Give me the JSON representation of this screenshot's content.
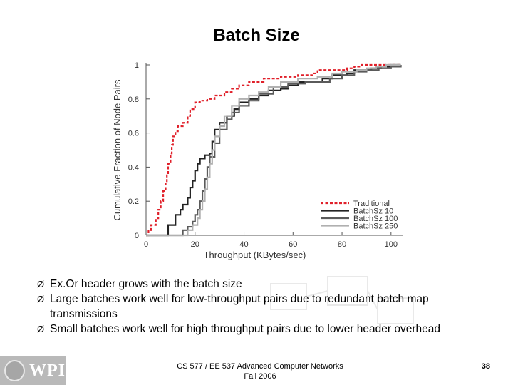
{
  "slide": {
    "title": "Batch Size",
    "bullets": [
      "Ex.Or header grows with the batch size",
      "Large batches work well for low-throughput pairs due to redundant batch map transmissions",
      "Small batches work well for high throughput pairs due to lower header overhead"
    ],
    "bullet_marker": "Ø",
    "footer_line1": "CS 577 / EE 537 Advanced Computer Networks",
    "footer_line2": "Fall 2006",
    "page_number": "38",
    "logo_text": "WPI"
  },
  "chart_data": {
    "type": "line",
    "title": "",
    "xlabel": "Throughput (KBytes/sec)",
    "ylabel": "Cumulative Fraction of Node Pairs",
    "xlim": [
      0,
      105
    ],
    "ylim": [
      0,
      1
    ],
    "x_ticks": [
      0,
      20,
      40,
      60,
      80,
      100
    ],
    "y_ticks": [
      0,
      0.2,
      0.4,
      0.6,
      0.8,
      1
    ],
    "x_tick_labels": [
      "0",
      "20",
      "40",
      "60",
      "80",
      "100"
    ],
    "y_tick_labels": [
      "0",
      "0.2",
      "0.4",
      "0.6",
      "0.8",
      "1"
    ],
    "grid": false,
    "legend_position": "bottom-right",
    "step": true,
    "series": [
      {
        "name": "Traditional",
        "color": "#e0202a",
        "dash": "dashed",
        "points": [
          [
            0,
            0
          ],
          [
            1,
            0.03
          ],
          [
            2,
            0.06
          ],
          [
            4,
            0.1
          ],
          [
            5,
            0.15
          ],
          [
            6,
            0.2
          ],
          [
            7,
            0.26
          ],
          [
            8,
            0.31
          ],
          [
            8.5,
            0.36
          ],
          [
            9,
            0.42
          ],
          [
            10,
            0.48
          ],
          [
            10.5,
            0.53
          ],
          [
            11,
            0.58
          ],
          [
            12,
            0.61
          ],
          [
            13,
            0.64
          ],
          [
            15,
            0.66
          ],
          [
            17,
            0.7
          ],
          [
            18,
            0.74
          ],
          [
            20,
            0.78
          ],
          [
            22,
            0.79
          ],
          [
            25,
            0.8
          ],
          [
            28,
            0.82
          ],
          [
            32,
            0.84
          ],
          [
            35,
            0.86
          ],
          [
            38,
            0.88
          ],
          [
            42,
            0.9
          ],
          [
            48,
            0.92
          ],
          [
            55,
            0.93
          ],
          [
            62,
            0.94
          ],
          [
            68,
            0.95
          ],
          [
            70,
            0.97
          ],
          [
            78,
            0.97
          ],
          [
            82,
            0.98
          ],
          [
            85,
            0.99
          ],
          [
            88,
            1.0
          ],
          [
            104,
            1.0
          ]
        ]
      },
      {
        "name": "BatchSz 10",
        "color": "#222222",
        "dash": "solid",
        "points": [
          [
            0,
            0
          ],
          [
            9,
            0
          ],
          [
            9,
            0.06
          ],
          [
            11,
            0.06
          ],
          [
            12,
            0.12
          ],
          [
            14,
            0.15
          ],
          [
            15,
            0.18
          ],
          [
            17,
            0.22
          ],
          [
            18,
            0.28
          ],
          [
            19,
            0.32
          ],
          [
            20,
            0.38
          ],
          [
            21,
            0.42
          ],
          [
            22,
            0.45
          ],
          [
            24,
            0.47
          ],
          [
            26,
            0.48
          ],
          [
            27,
            0.55
          ],
          [
            28,
            0.62
          ],
          [
            30,
            0.66
          ],
          [
            33,
            0.7
          ],
          [
            36,
            0.74
          ],
          [
            38,
            0.78
          ],
          [
            42,
            0.8
          ],
          [
            46,
            0.82
          ],
          [
            50,
            0.85
          ],
          [
            55,
            0.86
          ],
          [
            58,
            0.88
          ],
          [
            62,
            0.9
          ],
          [
            72,
            0.92
          ],
          [
            76,
            0.94
          ],
          [
            82,
            0.95
          ],
          [
            85,
            0.97
          ],
          [
            92,
            0.98
          ],
          [
            96,
            0.99
          ],
          [
            100,
            1.0
          ],
          [
            104,
            1.0
          ]
        ]
      },
      {
        "name": "BatchSz 100",
        "color": "#5a5a5a",
        "dash": "solid",
        "points": [
          [
            0,
            0
          ],
          [
            14,
            0
          ],
          [
            15,
            0.03
          ],
          [
            17,
            0.05
          ],
          [
            19,
            0.08
          ],
          [
            20,
            0.12
          ],
          [
            21,
            0.15
          ],
          [
            22,
            0.2
          ],
          [
            23,
            0.26
          ],
          [
            24,
            0.33
          ],
          [
            25,
            0.4
          ],
          [
            26,
            0.46
          ],
          [
            28,
            0.54
          ],
          [
            30,
            0.62
          ],
          [
            33,
            0.68
          ],
          [
            35,
            0.72
          ],
          [
            38,
            0.76
          ],
          [
            42,
            0.79
          ],
          [
            46,
            0.83
          ],
          [
            52,
            0.87
          ],
          [
            58,
            0.89
          ],
          [
            65,
            0.9
          ],
          [
            72,
            0.9
          ],
          [
            75,
            0.92
          ],
          [
            80,
            0.94
          ],
          [
            85,
            0.96
          ],
          [
            90,
            0.97
          ],
          [
            95,
            0.98
          ],
          [
            100,
            0.99
          ],
          [
            104,
            1.0
          ]
        ]
      },
      {
        "name": "BatchSz 250",
        "color": "#b0b0b0",
        "dash": "solid",
        "points": [
          [
            0,
            0
          ],
          [
            16,
            0
          ],
          [
            17,
            0.03
          ],
          [
            19,
            0.06
          ],
          [
            21,
            0.1
          ],
          [
            22,
            0.15
          ],
          [
            23,
            0.2
          ],
          [
            24,
            0.27
          ],
          [
            25,
            0.34
          ],
          [
            26,
            0.42
          ],
          [
            27,
            0.5
          ],
          [
            28,
            0.58
          ],
          [
            30,
            0.64
          ],
          [
            32,
            0.7
          ],
          [
            35,
            0.76
          ],
          [
            38,
            0.8
          ],
          [
            42,
            0.82
          ],
          [
            46,
            0.84
          ],
          [
            50,
            0.87
          ],
          [
            55,
            0.9
          ],
          [
            62,
            0.92
          ],
          [
            70,
            0.93
          ],
          [
            76,
            0.95
          ],
          [
            80,
            0.96
          ],
          [
            86,
            0.97
          ],
          [
            90,
            0.98
          ],
          [
            94,
            0.99
          ],
          [
            98,
            1.0
          ],
          [
            104,
            1.0
          ]
        ]
      }
    ]
  }
}
